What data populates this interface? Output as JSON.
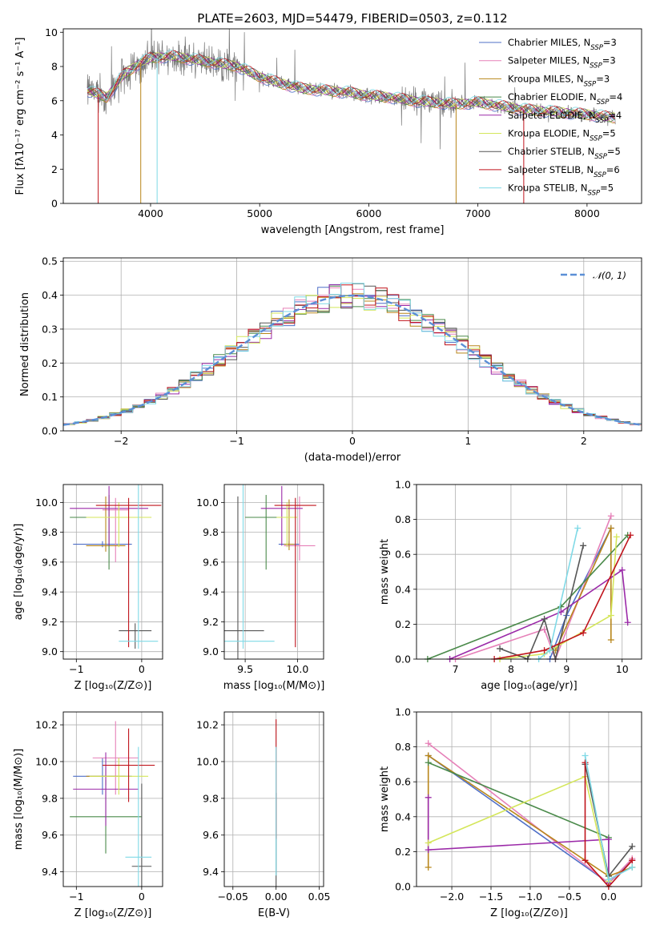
{
  "colors": {
    "Chabrier MILES": "#4f6fc7",
    "Salpeter MILES": "#e680b8",
    "Kroupa MILES": "#b8861a",
    "Chabrier ELODIE": "#4a8a4a",
    "Salpeter ELODIE": "#9b2aa8",
    "Kroupa ELODIE": "#d4e65a",
    "Chabrier STELIB": "#555555",
    "Salpeter STELIB": "#c0141c",
    "Kroupa STELIB": "#7fd9e6",
    "gauss": "#5b8fd6"
  },
  "chart_data": [
    {
      "id": "spectrum",
      "type": "line",
      "title": "PLATE=2603, MJD=54479, FIBERID=0503, z=0.112",
      "xlabel": "wavelength [Angstrom, rest frame]",
      "ylabel": "Flux [fλ10⁻¹⁷ erg cm⁻² s⁻¹ A⁻¹]",
      "xlim": [
        3200,
        8500
      ],
      "ylim": [
        0,
        10.2
      ],
      "xticks": [
        "4000",
        "5000",
        "6000",
        "7000",
        "8000"
      ],
      "yticks": [
        "0",
        "2",
        "4",
        "6",
        "8",
        "10"
      ],
      "continuum": [
        [
          3420,
          6.6
        ],
        [
          3600,
          6.2
        ],
        [
          3750,
          7.5
        ],
        [
          3900,
          8.2
        ],
        [
          4000,
          8.5
        ],
        [
          4200,
          8.6
        ],
        [
          4400,
          8.4
        ],
        [
          4600,
          8.2
        ],
        [
          4800,
          8.0
        ],
        [
          5000,
          7.4
        ],
        [
          5200,
          7.0
        ],
        [
          5400,
          6.7
        ],
        [
          5600,
          6.6
        ],
        [
          5800,
          6.5
        ],
        [
          6000,
          6.3
        ],
        [
          6200,
          6.2
        ],
        [
          6400,
          6.0
        ],
        [
          6600,
          5.9
        ],
        [
          6800,
          5.8
        ],
        [
          7000,
          5.9
        ],
        [
          7200,
          5.7
        ],
        [
          7400,
          5.5
        ],
        [
          7600,
          5.4
        ],
        [
          7800,
          5.3
        ],
        [
          8000,
          5.2
        ],
        [
          8260,
          5.0
        ]
      ],
      "observed_series": "data",
      "legend": [
        {
          "name": "Chabrier MILES",
          "nssp": "3"
        },
        {
          "name": "Salpeter MILES",
          "nssp": "3"
        },
        {
          "name": "Kroupa MILES",
          "nssp": "3"
        },
        {
          "name": "Chabrier ELODIE",
          "nssp": "4"
        },
        {
          "name": "Salpeter ELODIE",
          "nssp": "4"
        },
        {
          "name": "Kroupa ELODIE",
          "nssp": "5"
        },
        {
          "name": "Chabrier STELIB",
          "nssp": "5"
        },
        {
          "name": "Salpeter STELIB",
          "nssp": "6"
        },
        {
          "name": "Kroupa STELIB",
          "nssp": "5"
        }
      ]
    },
    {
      "id": "residuals",
      "type": "line",
      "xlabel": "(data-model)/error",
      "ylabel": "Normed distribution",
      "xlim": [
        -2.5,
        2.5
      ],
      "ylim": [
        0,
        0.51
      ],
      "xticks": [
        "−2",
        "−1",
        "0",
        "1",
        "2"
      ],
      "yticks": [
        "0.0",
        "0.1",
        "0.2",
        "0.3",
        "0.4",
        "0.5"
      ],
      "legend": "𝒩(0, 1)",
      "bin_width": 0.1
    },
    {
      "id": "age-vs-z",
      "type": "scatter",
      "xlabel": "Z [log₁₀(Z/Z⊙)]",
      "ylabel": "age  [log₁₀(age/yr)]",
      "xlim": [
        -1.2,
        0.32
      ],
      "ylim": [
        8.95,
        10.12
      ],
      "xticks": [
        "−1",
        "0"
      ],
      "yticks": [
        "9.0",
        "9.2",
        "9.4",
        "9.6",
        "9.8",
        "10.0"
      ],
      "points": [
        {
          "model": "Chabrier MILES",
          "x": -0.6,
          "xerr": 0.45,
          "y": 9.72,
          "yerr": [
            0.02,
            0.02
          ]
        },
        {
          "model": "Salpeter MILES",
          "x": -0.4,
          "xerr": 0.2,
          "y": 9.95,
          "yerr": [
            0.35,
            0.08
          ]
        },
        {
          "model": "Kroupa MILES",
          "x": -0.55,
          "xerr": 0.3,
          "y": 9.71,
          "yerr": [
            0.04,
            0.33
          ]
        },
        {
          "model": "Chabrier ELODIE",
          "x": -0.5,
          "xerr": 0.6,
          "y": 9.9,
          "yerr": [
            0.35,
            0.15
          ]
        },
        {
          "model": "Salpeter ELODIE",
          "x": -0.5,
          "xerr": 0.6,
          "y": 9.96,
          "yerr": [
            0.25,
            0.15
          ]
        },
        {
          "model": "Kroupa ELODIE",
          "x": -0.35,
          "xerr": 0.5,
          "y": 9.9,
          "yerr": [
            0.2,
            0.1
          ]
        },
        {
          "model": "Chabrier STELIB",
          "x": -0.1,
          "xerr": 0.25,
          "y": 9.14,
          "yerr": [
            0.12,
            0.05
          ]
        },
        {
          "model": "Salpeter STELIB",
          "x": -0.2,
          "xerr": 0.5,
          "y": 9.98,
          "yerr": [
            0.95,
            0.05
          ]
        },
        {
          "model": "Kroupa STELIB",
          "x": -0.05,
          "xerr": 0.3,
          "y": 9.07,
          "yerr": [
            0.05,
            1.05
          ]
        }
      ]
    },
    {
      "id": "age-vs-mass",
      "type": "scatter",
      "xlabel": "mass [log₁₀(M/M⊙)]",
      "ylabel": "",
      "xlim": [
        9.3,
        10.25
      ],
      "ylim": [
        8.95,
        10.12
      ],
      "xticks": [
        "9.5",
        "10.0"
      ],
      "yticks": [
        "9.0",
        "9.2",
        "9.4",
        "9.6",
        "9.8",
        "10.0"
      ],
      "points": [
        {
          "model": "Chabrier MILES",
          "x": 9.92,
          "xerr": 0.1,
          "y": 9.72,
          "yerr": [
            0.02,
            0.02
          ]
        },
        {
          "model": "Salpeter MILES",
          "x": 10.02,
          "xerr": 0.15,
          "y": 9.71,
          "yerr": [
            0.1,
            0.33
          ]
        },
        {
          "model": "Kroupa MILES",
          "x": 9.92,
          "xerr": 0.05,
          "y": 9.72,
          "yerr": [
            0.04,
            0.3
          ]
        },
        {
          "model": "Chabrier ELODIE",
          "x": 9.7,
          "xerr": 0.2,
          "y": 9.9,
          "yerr": [
            0.35,
            0.15
          ]
        },
        {
          "model": "Salpeter ELODIE",
          "x": 9.85,
          "xerr": 0.2,
          "y": 9.96,
          "yerr": [
            0.25,
            0.15
          ]
        },
        {
          "model": "Kroupa ELODIE",
          "x": 9.9,
          "xerr": 0.1,
          "y": 9.9,
          "yerr": [
            0.2,
            0.1
          ]
        },
        {
          "model": "Chabrier STELIB",
          "x": 9.43,
          "xerr": 0.25,
          "y": 9.14,
          "yerr": [
            0.2,
            0.9
          ]
        },
        {
          "model": "Salpeter STELIB",
          "x": 9.98,
          "xerr": 0.2,
          "y": 9.98,
          "yerr": [
            0.95,
            0.05
          ]
        },
        {
          "model": "Kroupa STELIB",
          "x": 9.48,
          "xerr": 0.3,
          "y": 9.07,
          "yerr": [
            0.05,
            1.05
          ]
        }
      ]
    },
    {
      "id": "mass-vs-z",
      "type": "scatter",
      "xlabel": "Z [log₁₀(Z/Z⊙)]",
      "ylabel": "mass [log₁₀(M/M⊙)]",
      "xlim": [
        -1.2,
        0.32
      ],
      "ylim": [
        9.32,
        10.27
      ],
      "xticks": [
        "−1",
        "0"
      ],
      "yticks": [
        "9.4",
        "9.6",
        "9.8",
        "10.0",
        "10.2"
      ],
      "points": [
        {
          "model": "Chabrier MILES",
          "x": -0.6,
          "xerr": 0.45,
          "y": 9.92,
          "yerr": [
            0.1,
            0.1
          ]
        },
        {
          "model": "Salpeter MILES",
          "x": -0.4,
          "xerr": 0.35,
          "y": 10.02,
          "yerr": [
            0.2,
            0.2
          ]
        },
        {
          "model": "Kroupa MILES",
          "x": -0.55,
          "xerr": 0.3,
          "y": 9.92,
          "yerr": [
            0.05,
            0.05
          ]
        },
        {
          "model": "Chabrier ELODIE",
          "x": -0.55,
          "xerr": 0.55,
          "y": 9.7,
          "yerr": [
            0.2,
            0.2
          ]
        },
        {
          "model": "Salpeter ELODIE",
          "x": -0.55,
          "xerr": 0.5,
          "y": 9.85,
          "yerr": [
            0.2,
            0.2
          ]
        },
        {
          "model": "Kroupa ELODIE",
          "x": -0.35,
          "xerr": 0.45,
          "y": 9.92,
          "yerr": [
            0.1,
            0.1
          ]
        },
        {
          "model": "Chabrier STELIB",
          "x": 0.0,
          "xerr": 0.15,
          "y": 9.43,
          "yerr": [
            0.15,
            0.45
          ]
        },
        {
          "model": "Salpeter STELIB",
          "x": -0.2,
          "xerr": 0.4,
          "y": 9.98,
          "yerr": [
            0.2,
            0.2
          ]
        },
        {
          "model": "Kroupa STELIB",
          "x": -0.05,
          "xerr": 0.2,
          "y": 9.48,
          "yerr": [
            0.2,
            0.6
          ]
        }
      ]
    },
    {
      "id": "mass-vs-ebv",
      "type": "scatter",
      "xlabel": "E(B-V)",
      "ylabel": "",
      "xlim": [
        -0.06,
        0.055
      ],
      "ylim": [
        9.32,
        10.27
      ],
      "xticks": [
        "−0.05",
        "0.00",
        "0.05"
      ],
      "yticks": [
        "9.4",
        "9.6",
        "9.8",
        "10.0",
        "10.2"
      ],
      "points": [
        {
          "model": "Chabrier STELIB",
          "x": 0.0,
          "y": 9.43,
          "yerr": [
            0.2,
            0.4
          ]
        },
        {
          "model": "Salpeter STELIB",
          "x": 0.0,
          "y": 9.98,
          "yerr": [
            0.4,
            0.25
          ]
        },
        {
          "model": "Kroupa STELIB",
          "x": 0.0,
          "y": 9.48,
          "yerr": [
            0.1,
            0.6
          ]
        }
      ]
    },
    {
      "id": "weight-vs-age",
      "type": "line",
      "xlabel": "age  [log₁₀(age/yr)]",
      "ylabel": "mass weight",
      "xlim": [
        6.3,
        10.35
      ],
      "ylim": [
        0,
        1.0
      ],
      "xticks": [
        "7",
        "8",
        "9",
        "10"
      ],
      "yticks": [
        "0.0",
        "0.2",
        "0.4",
        "0.6",
        "0.8",
        "1.0"
      ],
      "series": [
        {
          "model": "Chabrier MILES",
          "points": [
            [
              8.7,
              0.0
            ],
            [
              9.0,
              0.25
            ],
            [
              9.8,
              0.75
            ]
          ]
        },
        {
          "model": "Salpeter MILES",
          "points": [
            [
              7.0,
              0.0
            ],
            [
              8.6,
              0.17
            ],
            [
              8.8,
              0.0
            ],
            [
              9.8,
              0.82
            ]
          ]
        },
        {
          "model": "Kroupa MILES",
          "points": [
            [
              8.8,
              0.05
            ],
            [
              9.8,
              0.75
            ],
            [
              9.8,
              0.11
            ]
          ]
        },
        {
          "model": "Chabrier ELODIE",
          "points": [
            [
              6.5,
              0.0
            ],
            [
              8.9,
              0.3
            ],
            [
              10.1,
              0.71
            ]
          ]
        },
        {
          "model": "Salpeter ELODIE",
          "points": [
            [
              6.9,
              0.0
            ],
            [
              8.9,
              0.27
            ],
            [
              10.0,
              0.51
            ],
            [
              10.1,
              0.21
            ]
          ]
        },
        {
          "model": "Kroupa ELODIE",
          "points": [
            [
              7.8,
              0.0
            ],
            [
              8.6,
              0.03
            ],
            [
              9.8,
              0.25
            ],
            [
              9.9,
              0.7
            ]
          ]
        },
        {
          "model": "Chabrier STELIB",
          "points": [
            [
              7.8,
              0.06
            ],
            [
              8.3,
              0.0
            ],
            [
              8.6,
              0.23
            ],
            [
              8.8,
              0.0
            ],
            [
              9.3,
              0.65
            ]
          ]
        },
        {
          "model": "Salpeter STELIB",
          "points": [
            [
              7.7,
              0.0
            ],
            [
              8.6,
              0.05
            ],
            [
              9.3,
              0.15
            ],
            [
              10.15,
              0.71
            ]
          ]
        },
        {
          "model": "Kroupa STELIB",
          "points": [
            [
              8.5,
              0.0
            ],
            [
              8.7,
              0.05
            ],
            [
              9.2,
              0.75
            ]
          ]
        }
      ]
    },
    {
      "id": "weight-vs-z",
      "type": "line",
      "xlabel": "Z [log₁₀(Z/Z⊙)]",
      "ylabel": "mass weight",
      "xlim": [
        -2.45,
        0.42
      ],
      "ylim": [
        0,
        1.0
      ],
      "xticks": [
        "−2.0",
        "−1.5",
        "−1.0",
        "−0.5",
        "0.0"
      ],
      "yticks": [
        "0.0",
        "0.2",
        "0.4",
        "0.6",
        "0.8",
        "1.0"
      ],
      "series": [
        {
          "model": "Chabrier MILES",
          "points": [
            [
              -2.3,
              0.75
            ],
            [
              0.0,
              0.02
            ],
            [
              0.3,
              0.15
            ]
          ]
        },
        {
          "model": "Salpeter MILES",
          "points": [
            [
              -2.3,
              0.82
            ],
            [
              0.0,
              0.02
            ],
            [
              0.3,
              0.16
            ]
          ]
        },
        {
          "model": "Kroupa MILES",
          "points": [
            [
              -2.3,
              0.11
            ],
            [
              -2.3,
              0.75
            ],
            [
              0.0,
              0.06
            ],
            [
              0.3,
              0.11
            ]
          ]
        },
        {
          "model": "Chabrier ELODIE",
          "points": [
            [
              -2.3,
              0.71
            ],
            [
              0.0,
              0.28
            ],
            [
              0.0,
              0.02
            ]
          ]
        },
        {
          "model": "Salpeter ELODIE",
          "points": [
            [
              -2.3,
              0.51
            ],
            [
              -2.3,
              0.21
            ],
            [
              0.0,
              0.27
            ],
            [
              0.0,
              0.02
            ]
          ]
        },
        {
          "model": "Kroupa ELODIE",
          "points": [
            [
              -2.3,
              0.25
            ],
            [
              -0.3,
              0.63
            ],
            [
              0.0,
              0.03
            ]
          ]
        },
        {
          "model": "Chabrier STELIB",
          "points": [
            [
              -0.3,
              0.7
            ],
            [
              0.0,
              0.06
            ],
            [
              0.3,
              0.23
            ]
          ]
        },
        {
          "model": "Salpeter STELIB",
          "points": [
            [
              -0.3,
              0.71
            ],
            [
              -0.3,
              0.15
            ],
            [
              0.0,
              0.0
            ],
            [
              0.3,
              0.15
            ]
          ]
        },
        {
          "model": "Kroupa STELIB",
          "points": [
            [
              -0.3,
              0.75
            ],
            [
              0.0,
              0.04
            ],
            [
              0.3,
              0.11
            ]
          ]
        }
      ]
    }
  ]
}
